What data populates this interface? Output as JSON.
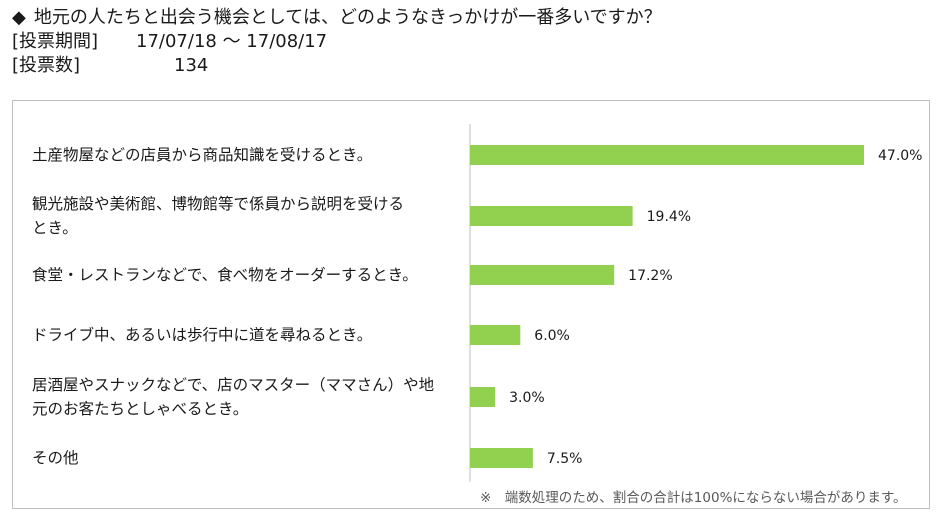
{
  "header": {
    "question_marker": "◆",
    "question": "地元の人たちと出会う機会としては、どのようなきっかけが一番多いですか？",
    "period_label": "[投票期間]",
    "period_value": "17/07/18 ～ 17/08/17",
    "count_label": "[投票数]",
    "count_value": "134"
  },
  "chart_data": {
    "type": "bar",
    "orientation": "horizontal",
    "categories": [
      [
        "土産物屋などの店員から商品知識を受けるとき。"
      ],
      [
        "観光施設や美術館、博物館等で係員から説明を受ける",
        "とき。"
      ],
      [
        "食堂・レストランなどで、食べ物をオーダーするとき。"
      ],
      [
        "ドライブ中、あるいは歩行中に道を尋ねるとき。"
      ],
      [
        "居酒屋やスナックなどで、店のマスター（ママさん）や地",
        "元のお客たちとしゃべるとき。"
      ],
      [
        "その他"
      ]
    ],
    "values": [
      47.0,
      19.4,
      17.2,
      6.0,
      3.0,
      7.5
    ],
    "value_labels": [
      "47.0%",
      "19.4%",
      "17.2%",
      "6.0%",
      "3.0%",
      "7.5%"
    ],
    "xlim": [
      0,
      47.0
    ],
    "bar_color": "#92d050",
    "axis_color": "#bfbfbf",
    "grid": false,
    "legend": "none"
  },
  "footnote": "※　端数処理のため、割合の合計は100%にならない場合があります。"
}
